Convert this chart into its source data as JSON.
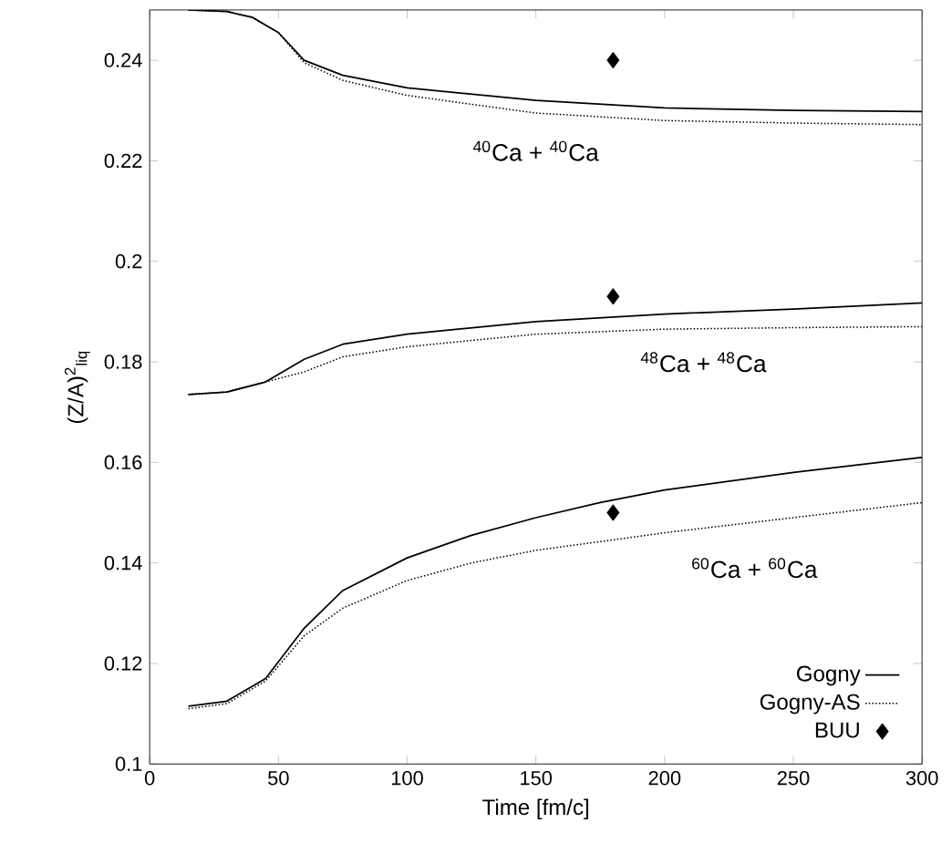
{
  "chart_data": {
    "type": "line",
    "xlabel": "Time [fm/c]",
    "ylabel": "(Z/A)$^{2}$$_{liq}$",
    "xlim": [
      0,
      300
    ],
    "ylim": [
      0.1,
      0.25
    ],
    "xticks": [
      0,
      50,
      100,
      150,
      200,
      250,
      300
    ],
    "yticks": [
      0.1,
      0.12,
      0.14,
      0.16,
      0.18,
      0.2,
      0.22,
      0.24
    ],
    "grid": false,
    "legend": "bottom right",
    "series": [
      {
        "name": "Gogny",
        "color": "#000000",
        "line_style": "solid",
        "marker": "none",
        "x": [
          15,
          30,
          40,
          50,
          60,
          75,
          100,
          150,
          200,
          250,
          300
        ],
        "values": [
          0.25,
          0.2497,
          0.2485,
          0.2455,
          0.24,
          0.237,
          0.2345,
          0.232,
          0.2305,
          0.23,
          0.2298
        ]
      },
      {
        "color": "#000000",
        "line_style": "solid",
        "marker": "none",
        "x": [
          15,
          30,
          45,
          55,
          60,
          75,
          100,
          150,
          200,
          250,
          300
        ],
        "values": [
          0.1735,
          0.174,
          0.176,
          0.179,
          0.1805,
          0.1835,
          0.1855,
          0.188,
          0.1895,
          0.1905,
          0.1917
        ]
      },
      {
        "color": "#000000",
        "line_style": "solid",
        "marker": "none",
        "x": [
          15,
          30,
          45,
          60,
          75,
          100,
          125,
          150,
          175,
          200,
          250,
          300
        ],
        "values": [
          0.1115,
          0.1125,
          0.117,
          0.127,
          0.1345,
          0.141,
          0.1455,
          0.149,
          0.152,
          0.1545,
          0.158,
          0.161
        ]
      },
      {
        "name": "Gogny-AS",
        "color": "#000000",
        "line_style": "dotted",
        "marker": "none",
        "x": [
          15,
          30,
          40,
          50,
          60,
          75,
          100,
          150,
          200,
          250,
          300
        ],
        "values": [
          0.25,
          0.2497,
          0.2485,
          0.2455,
          0.2395,
          0.236,
          0.233,
          0.2295,
          0.228,
          0.2275,
          0.2272
        ]
      },
      {
        "color": "#000000",
        "line_style": "dotted",
        "marker": "none",
        "x": [
          15,
          30,
          45,
          60,
          75,
          100,
          150,
          200,
          250,
          300
        ],
        "values": [
          0.1735,
          0.174,
          0.176,
          0.178,
          0.181,
          0.183,
          0.1855,
          0.1865,
          0.1868,
          0.187
        ]
      },
      {
        "color": "#000000",
        "line_style": "dotted",
        "marker": "none",
        "x": [
          15,
          30,
          45,
          60,
          75,
          100,
          125,
          150,
          200,
          250,
          300
        ],
        "values": [
          0.111,
          0.112,
          0.1165,
          0.1255,
          0.131,
          0.1365,
          0.14,
          0.1425,
          0.146,
          0.149,
          0.152
        ]
      },
      {
        "name": "BUU",
        "type": "scatter",
        "color": "#000000",
        "marker": "diamond",
        "x": [
          180,
          180,
          180
        ],
        "values": [
          0.24,
          0.193,
          0.15
        ]
      }
    ],
    "annotations": [
      "$^{40}$Ca + $^{40}$Ca",
      "$^{48}$Ca + $^{48}$Ca",
      "$^{60}$Ca + $^{60}$Ca"
    ]
  }
}
